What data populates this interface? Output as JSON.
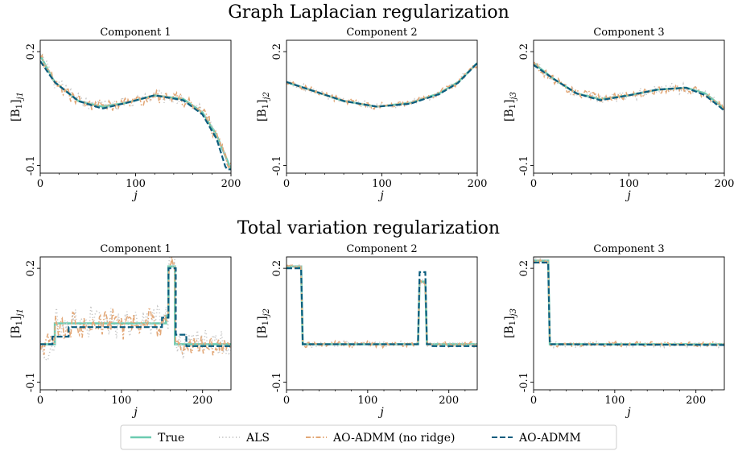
{
  "figure": {
    "row_titles": [
      "Graph Laplacian regularization",
      "Total variation regularization"
    ],
    "ylabel_prefix": "[B",
    "ylabel_sub": "1",
    "ylabel_suffixes": [
      "j1",
      "j2",
      "j3"
    ],
    "xlabel": "j"
  },
  "legend": {
    "items": [
      {
        "label": "True",
        "color": "#6ccbb0",
        "style": "solid"
      },
      {
        "label": "ALS",
        "color": "#c8c8c8",
        "style": "dotted"
      },
      {
        "label": "AO-ADMM (no ridge)",
        "color": "#e3a878",
        "style": "dashdot"
      },
      {
        "label": "AO-ADMM",
        "color": "#0b5d7e",
        "style": "dashed"
      }
    ]
  },
  "chart_data": [
    {
      "type": "line",
      "row": 0,
      "title": "Component 1",
      "xlabel": "j",
      "ylabel": "[B1]j1",
      "xlim": [
        0,
        200
      ],
      "ylim": [
        -0.12,
        0.23
      ],
      "xticks": [
        0,
        100,
        200
      ],
      "yticks": [
        -0.1,
        0.2
      ],
      "true_profile": [
        [
          0,
          0.19
        ],
        [
          15,
          0.12
        ],
        [
          40,
          0.07
        ],
        [
          65,
          0.055
        ],
        [
          90,
          0.065
        ],
        [
          120,
          0.085
        ],
        [
          150,
          0.075
        ],
        [
          170,
          0.04
        ],
        [
          185,
          -0.02
        ],
        [
          200,
          -0.11
        ]
      ],
      "admm_profile": [
        [
          0,
          0.175
        ],
        [
          15,
          0.12
        ],
        [
          40,
          0.07
        ],
        [
          65,
          0.05
        ],
        [
          90,
          0.065
        ],
        [
          120,
          0.085
        ],
        [
          150,
          0.072
        ],
        [
          170,
          0.035
        ],
        [
          185,
          -0.03
        ],
        [
          195,
          -0.11
        ]
      ],
      "noise_amp": 0.02
    },
    {
      "type": "line",
      "row": 0,
      "title": "Component 2",
      "xlabel": "j",
      "ylabel": "[B1]j2",
      "xlim": [
        0,
        200
      ],
      "ylim": [
        -0.12,
        0.23
      ],
      "xticks": [
        0,
        100,
        200
      ],
      "yticks": [
        -0.1,
        0.2
      ],
      "true_profile": [
        [
          0,
          0.12
        ],
        [
          30,
          0.095
        ],
        [
          60,
          0.07
        ],
        [
          95,
          0.055
        ],
        [
          130,
          0.065
        ],
        [
          160,
          0.09
        ],
        [
          180,
          0.12
        ],
        [
          200,
          0.17
        ]
      ],
      "admm_profile": [
        [
          0,
          0.12
        ],
        [
          30,
          0.095
        ],
        [
          60,
          0.07
        ],
        [
          95,
          0.055
        ],
        [
          130,
          0.063
        ],
        [
          160,
          0.088
        ],
        [
          180,
          0.118
        ],
        [
          200,
          0.17
        ]
      ],
      "noise_amp": 0.01
    },
    {
      "type": "line",
      "row": 0,
      "title": "Component 3",
      "xlabel": "j",
      "ylabel": "[B1]j3",
      "xlim": [
        0,
        200
      ],
      "ylim": [
        -0.12,
        0.23
      ],
      "xticks": [
        0,
        100,
        200
      ],
      "yticks": [
        -0.1,
        0.2
      ],
      "true_profile": [
        [
          0,
          0.17
        ],
        [
          20,
          0.13
        ],
        [
          45,
          0.09
        ],
        [
          70,
          0.075
        ],
        [
          100,
          0.085
        ],
        [
          130,
          0.1
        ],
        [
          160,
          0.105
        ],
        [
          180,
          0.09
        ],
        [
          200,
          0.05
        ]
      ],
      "admm_profile": [
        [
          0,
          0.165
        ],
        [
          20,
          0.13
        ],
        [
          45,
          0.09
        ],
        [
          70,
          0.072
        ],
        [
          100,
          0.085
        ],
        [
          130,
          0.1
        ],
        [
          160,
          0.105
        ],
        [
          180,
          0.085
        ],
        [
          200,
          0.045
        ]
      ],
      "noise_amp": 0.015
    },
    {
      "type": "line",
      "row": 1,
      "title": "Component 1",
      "xlabel": "j",
      "ylabel": "[B1]j1",
      "xlim": [
        0,
        235
      ],
      "ylim": [
        -0.12,
        0.23
      ],
      "xticks": [
        0,
        100,
        200
      ],
      "yticks": [
        -0.1,
        0.2
      ],
      "true_profile": [
        [
          0,
          0.0
        ],
        [
          18,
          0.0
        ],
        [
          18,
          0.055
        ],
        [
          155,
          0.055
        ],
        [
          155,
          0.075
        ],
        [
          158,
          0.075
        ],
        [
          158,
          0.205
        ],
        [
          166,
          0.205
        ],
        [
          166,
          0.0
        ],
        [
          235,
          0.0
        ]
      ],
      "admm_profile": [
        [
          0,
          0.0
        ],
        [
          15,
          0.0
        ],
        [
          15,
          0.02
        ],
        [
          35,
          0.02
        ],
        [
          35,
          0.045
        ],
        [
          150,
          0.045
        ],
        [
          150,
          0.07
        ],
        [
          158,
          0.07
        ],
        [
          158,
          0.2
        ],
        [
          167,
          0.2
        ],
        [
          167,
          0.025
        ],
        [
          180,
          0.025
        ],
        [
          180,
          -0.005
        ],
        [
          235,
          -0.005
        ]
      ],
      "noise_amp": 0.045
    },
    {
      "type": "line",
      "row": 1,
      "title": "Component 2",
      "xlabel": "j",
      "ylabel": "[B1]j2",
      "xlim": [
        0,
        235
      ],
      "ylim": [
        -0.12,
        0.23
      ],
      "xticks": [
        0,
        100,
        200
      ],
      "yticks": [
        -0.1,
        0.2
      ],
      "true_profile": [
        [
          0,
          0.205
        ],
        [
          18,
          0.205
        ],
        [
          20,
          0.0
        ],
        [
          162,
          0.0
        ],
        [
          164,
          0.165
        ],
        [
          171,
          0.165
        ],
        [
          173,
          0.0
        ],
        [
          235,
          0.0
        ]
      ],
      "admm_profile": [
        [
          0,
          0.2
        ],
        [
          18,
          0.2
        ],
        [
          20,
          0.0
        ],
        [
          162,
          0.0
        ],
        [
          164,
          0.19
        ],
        [
          171,
          0.19
        ],
        [
          173,
          0.0
        ],
        [
          180,
          0.0
        ],
        [
          180,
          -0.005
        ],
        [
          235,
          -0.005
        ]
      ],
      "noise_amp": 0.01
    },
    {
      "type": "line",
      "row": 1,
      "title": "Component 3",
      "xlabel": "j",
      "ylabel": "[B1]j3",
      "xlim": [
        0,
        235
      ],
      "ylim": [
        -0.12,
        0.23
      ],
      "xticks": [
        0,
        100,
        200
      ],
      "yticks": [
        -0.1,
        0.2
      ],
      "true_profile": [
        [
          0,
          0.22
        ],
        [
          18,
          0.22
        ],
        [
          20,
          0.0
        ],
        [
          235,
          0.0
        ]
      ],
      "admm_profile": [
        [
          0,
          0.215
        ],
        [
          18,
          0.215
        ],
        [
          20,
          0.0
        ],
        [
          235,
          -0.002
        ]
      ],
      "noise_amp": 0.008
    }
  ]
}
